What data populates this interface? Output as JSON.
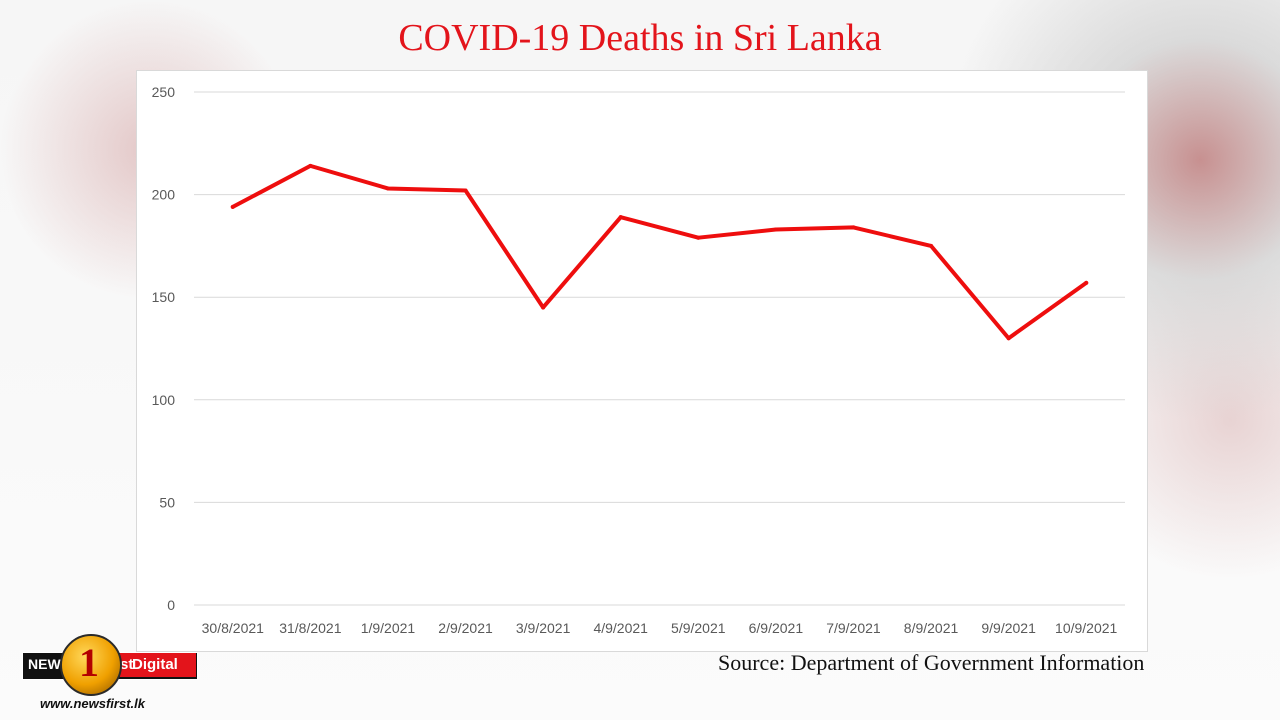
{
  "title": "COVID-19 Deaths in Sri Lanka",
  "source": "Source: Department of Government Information",
  "logo": {
    "news_text": "NEWS",
    "number": "1",
    "st_text": "st",
    "digital_text": "Digital",
    "url": "www.newsfirst.lk"
  },
  "colors": {
    "title": "#e3141b",
    "line": "#ee0e0e",
    "grid": "#d9d9d9",
    "ticks": "#595959"
  },
  "chart_data": {
    "type": "line",
    "title": "COVID-19 Deaths in Sri Lanka",
    "xlabel": "",
    "ylabel": "",
    "categories": [
      "30/8/2021",
      "31/8/2021",
      "1/9/2021",
      "2/9/2021",
      "3/9/2021",
      "4/9/2021",
      "5/9/2021",
      "6/9/2021",
      "7/9/2021",
      "8/9/2021",
      "9/9/2021",
      "10/9/2021"
    ],
    "series": [
      {
        "values": [
          194,
          214,
          203,
          202,
          145,
          189,
          179,
          183,
          184,
          175,
          130,
          157
        ]
      }
    ],
    "ylim": [
      0,
      250
    ],
    "yticks": [
      0,
      50,
      100,
      150,
      200,
      250
    ],
    "grid": true,
    "legend": "none"
  }
}
